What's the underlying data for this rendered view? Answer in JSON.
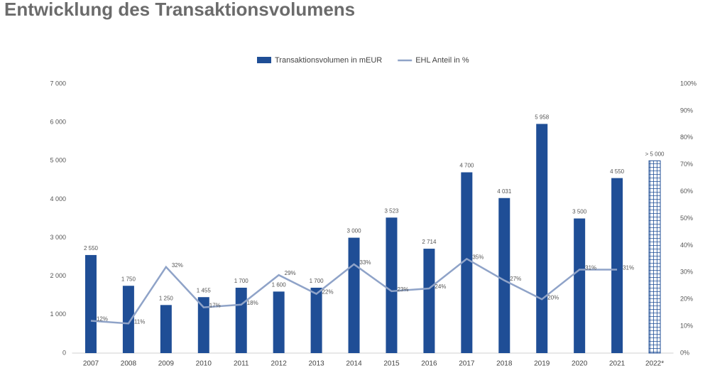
{
  "chart_data": {
    "type": "bar_line",
    "title": "Entwicklung des Transaktionsvolumens",
    "categories": [
      "2007",
      "2008",
      "2009",
      "2010",
      "2011",
      "2012",
      "2013",
      "2014",
      "2015",
      "2016",
      "2017",
      "2018",
      "2019",
      "2020",
      "2021",
      "2022*"
    ],
    "series": [
      {
        "name": "Transaktionsvolumen in mEUR",
        "type": "bar",
        "color": "#1f4e96",
        "values": [
          2550,
          1750,
          1250,
          1455,
          1700,
          1600,
          1700,
          3000,
          3523,
          2714,
          4700,
          4031,
          5958,
          3500,
          4550,
          5000
        ],
        "value_labels": [
          "2 550",
          "1 750",
          "1 250",
          "1 455",
          "1 700",
          "1 600",
          "1 700",
          "3 000",
          "3 523",
          "2 714",
          "4 700",
          "4 031",
          "5 958",
          "3 500",
          "4 550",
          "> 5 000"
        ],
        "bar_styles": [
          "solid",
          "solid",
          "solid",
          "solid",
          "solid",
          "solid",
          "solid",
          "solid",
          "solid",
          "solid",
          "solid",
          "solid",
          "solid",
          "solid",
          "solid",
          "hatched"
        ]
      },
      {
        "name": "EHL Anteil in %",
        "type": "line",
        "axis": "y2",
        "color": "#8fa3c8",
        "values": [
          12,
          11,
          32,
          17,
          18,
          29,
          22,
          33,
          23,
          24,
          35,
          27,
          20,
          31,
          31,
          null
        ],
        "value_labels": [
          "12%",
          "11%",
          "32%",
          "17%",
          "18%",
          "29%",
          "22%",
          "33%",
          "23%",
          "24%",
          "35%",
          "27%",
          "20%",
          "31%",
          "31%",
          null
        ]
      }
    ],
    "ylim": [
      0,
      7000
    ],
    "yticks": [
      {
        "value": 0,
        "label": "0"
      },
      {
        "value": 1000,
        "label": "1 000"
      },
      {
        "value": 2000,
        "label": "2 000"
      },
      {
        "value": 3000,
        "label": "3 000"
      },
      {
        "value": 4000,
        "label": "4 000"
      },
      {
        "value": 5000,
        "label": "5 000"
      },
      {
        "value": 6000,
        "label": "6 000"
      },
      {
        "value": 7000,
        "label": "7 000"
      }
    ],
    "y2lim": [
      0,
      100
    ],
    "y2ticks": [
      {
        "value": 0,
        "label": "0%"
      },
      {
        "value": 10,
        "label": "10%"
      },
      {
        "value": 20,
        "label": "20%"
      },
      {
        "value": 30,
        "label": "30%"
      },
      {
        "value": 40,
        "label": "40%"
      },
      {
        "value": 50,
        "label": "50%"
      },
      {
        "value": 60,
        "label": "60%"
      },
      {
        "value": 70,
        "label": "70%"
      },
      {
        "value": 80,
        "label": "80%"
      },
      {
        "value": 90,
        "label": "90%"
      },
      {
        "value": 100,
        "label": "100%"
      }
    ],
    "legend": "top"
  }
}
